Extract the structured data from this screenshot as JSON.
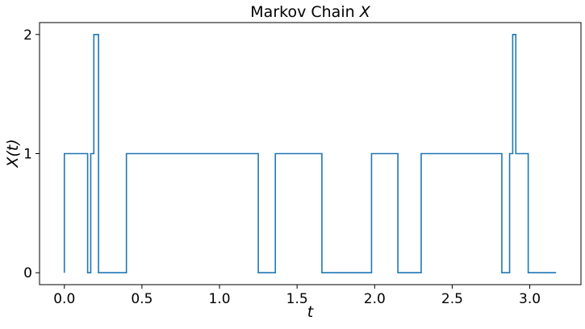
{
  "chart_data": {
    "type": "line",
    "drawstyle": "steps-post",
    "title": "Markov Chain X",
    "title_prefix": "Markov Chain ",
    "title_var": "X",
    "xlabel": "t",
    "ylabel": "X(t)",
    "xlim": [
      -0.16,
      3.33
    ],
    "ylim": [
      -0.1,
      2.1
    ],
    "xticks": [
      0.0,
      0.5,
      1.0,
      1.5,
      2.0,
      2.5,
      3.0
    ],
    "xtick_labels": [
      "0.0",
      "0.5",
      "1.0",
      "1.5",
      "2.0",
      "2.5",
      "3.0"
    ],
    "yticks": [
      0,
      1,
      2
    ],
    "ytick_labels": [
      "0",
      "1",
      "2"
    ],
    "grid": false,
    "legend": "none",
    "series": [
      {
        "color": "#1f77b4",
        "t": [
          0.0,
          0.0,
          0.15,
          0.17,
          0.19,
          0.22,
          0.4,
          1.25,
          1.36,
          1.66,
          1.98,
          2.15,
          2.3,
          2.82,
          2.87,
          2.89,
          2.91,
          2.99,
          3.17
        ],
        "x": [
          0,
          1,
          0,
          1,
          2,
          0,
          1,
          0,
          1,
          0,
          1,
          0,
          1,
          0,
          1,
          2,
          1,
          0,
          0
        ]
      }
    ]
  }
}
